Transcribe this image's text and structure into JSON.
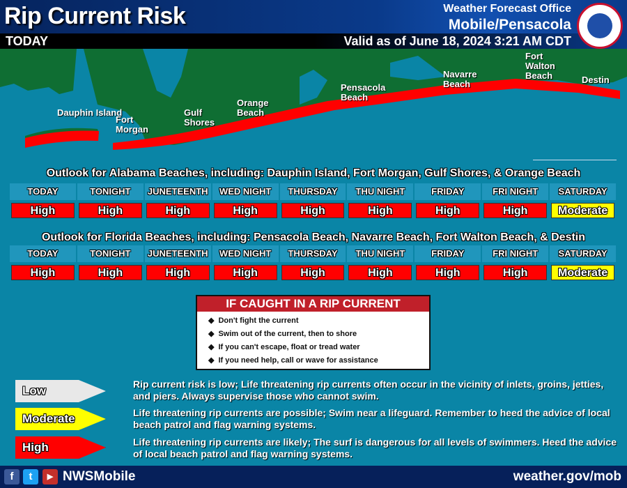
{
  "header": {
    "title": "Rip Current Risk",
    "office_label": "Weather Forecast Office",
    "office": "Mobile/Pensacola",
    "period": "TODAY",
    "valid": "Valid as of June 18, 2024 3:21 AM CDT",
    "logo_text": "NATIONAL WEATHER SERVICE"
  },
  "map": {
    "locations": [
      "Dauphin Island",
      "Fort Morgan",
      "Gulf Shores",
      "Orange Beach",
      "Pensacola Beach",
      "Navarre Beach",
      "Fort Walton Beach",
      "Destin"
    ],
    "risk_color": "#ff0000",
    "land_color": "#0f6e33",
    "water_color": "#0a85a6"
  },
  "periods": [
    "TODAY",
    "TONIGHT",
    "JUNETEENTH",
    "WED NIGHT",
    "THURSDAY",
    "THU NIGHT",
    "FRIDAY",
    "FRI NIGHT",
    "SATURDAY"
  ],
  "alabama": {
    "title": "Outlook for Alabama Beaches, including: Dauphin Island, Fort Morgan, Gulf Shores, & Orange Beach",
    "values": [
      "High",
      "High",
      "High",
      "High",
      "High",
      "High",
      "High",
      "High",
      "Moderate"
    ]
  },
  "florida": {
    "title": "Outlook for Florida Beaches, including: Pensacola Beach, Navarre Beach, Fort Walton Beach, & Destin",
    "values": [
      "High",
      "High",
      "High",
      "High",
      "High",
      "High",
      "High",
      "High",
      "Moderate"
    ]
  },
  "colors": {
    "High": "#ff0000",
    "Moderate": "#ffff00",
    "Low": "#e8e8e8"
  },
  "advice": {
    "title": "IF CAUGHT IN A RIP CURRENT",
    "items": [
      "Don't fight the current",
      "Swim out of the current, then to shore",
      "If you can't escape, float or tread water",
      "If you need help, call or wave for assistance"
    ]
  },
  "legend": [
    {
      "level": "Low",
      "text": "Rip current risk is low; Life threatening rip currents often occur in the vicinity of inlets, groins, jetties, and piers. Always supervise those who cannot swim."
    },
    {
      "level": "Moderate",
      "text": "Life threatening rip currents are possible; Swim near a lifeguard. Remember to heed the advice of local beach patrol and flag warning systems."
    },
    {
      "level": "High",
      "text": "Life threatening rip currents are likely; The surf is dangerous for all levels of swimmers. Heed the advice of local beach patrol and flag warning systems."
    }
  ],
  "footer": {
    "handle": "NWSMobile",
    "url": "weather.gov/mob",
    "icons": [
      "facebook-icon",
      "twitter-icon",
      "youtube-icon"
    ]
  }
}
